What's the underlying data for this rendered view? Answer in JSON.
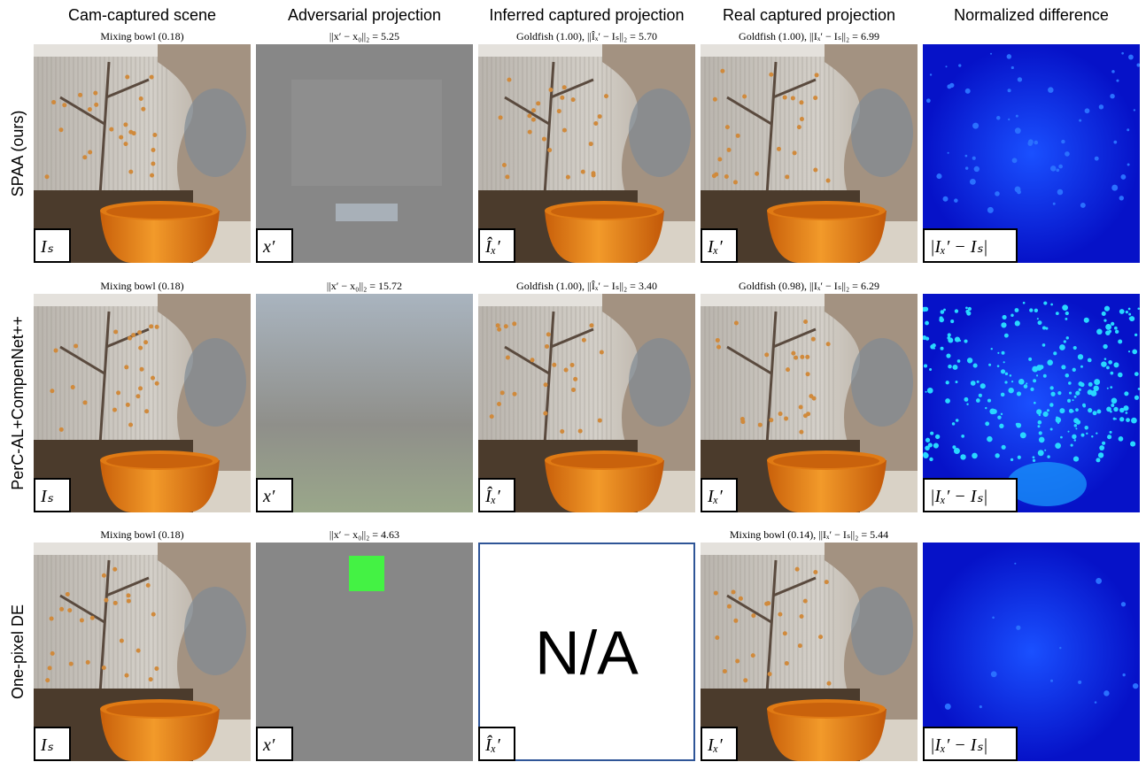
{
  "column_headers": [
    "Cam-captured scene",
    "Adversarial projection",
    "Inferred captured projection",
    "Real captured projection",
    "Normalized difference"
  ],
  "rows": [
    {
      "label": "SPAA (ours)",
      "cells": [
        {
          "caption": "Mixing bowl (0.18)",
          "corner": "Iₛ"
        },
        {
          "caption": "||x′ − x₀||₂ = 5.25",
          "corner": "x′"
        },
        {
          "caption": "Goldfish (1.00),    ||Îₓ′ − Iₛ||₂ = 5.70",
          "corner": "Îₓ′"
        },
        {
          "caption": "Goldfish (1.00),    ||Iₓ′ − Iₛ||₂ = 6.99",
          "corner": "Iₓ′"
        },
        {
          "corner": "|Iₓ′ − Iₛ|"
        }
      ]
    },
    {
      "label": "PerC-AL+CompenNet++",
      "cells": [
        {
          "caption": "Mixing bowl (0.18)",
          "corner": "Iₛ"
        },
        {
          "caption": "||x′ − x₀||₂ = 15.72",
          "corner": "x′"
        },
        {
          "caption": "Goldfish (1.00),    ||Îₓ′ − Iₛ||₂ = 3.40",
          "corner": "Îₓ′"
        },
        {
          "caption": "Goldfish (0.98),    ||Iₓ′ − Iₛ||₂ = 6.29",
          "corner": "Iₓ′"
        },
        {
          "corner": "|Iₓ′ − Iₛ|"
        }
      ]
    },
    {
      "label": "One-pixel DE",
      "cells": [
        {
          "caption": "Mixing bowl (0.18)",
          "corner": "Iₛ"
        },
        {
          "caption": "||x′ − x₀||₂ = 4.63",
          "corner": "x′"
        },
        {
          "corner": "Îₓ′",
          "center": "N/A"
        },
        {
          "caption": "Mixing bowl (0.14),    ||Iₓ′ − Iₛ||₂ = 5.44",
          "corner": "Iₓ′"
        },
        {
          "corner": "|Iₓ′ − Iₛ|"
        }
      ]
    }
  ]
}
